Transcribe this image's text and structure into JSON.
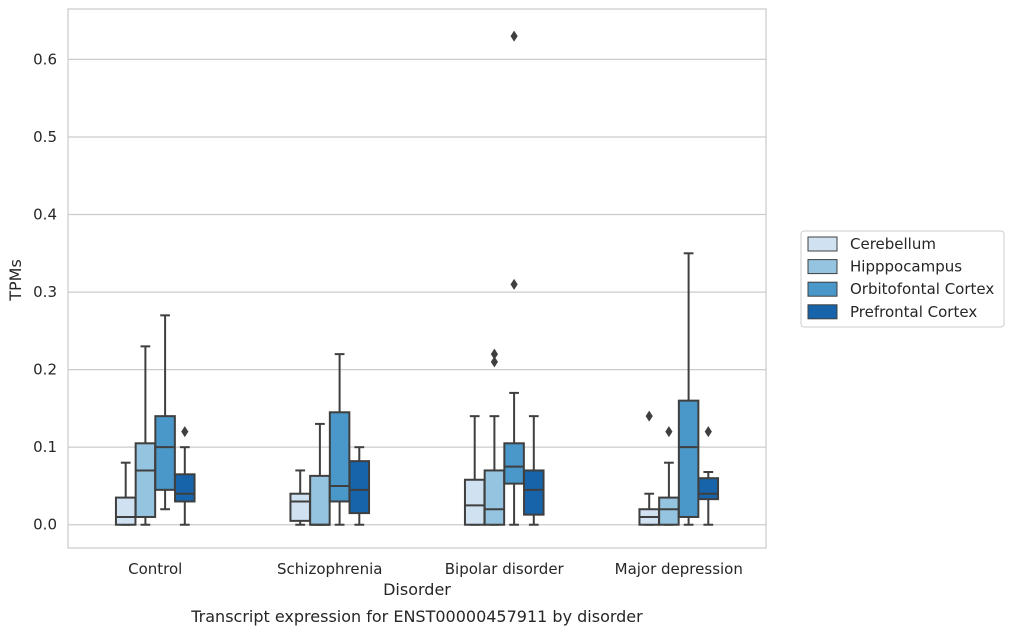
{
  "chart_data": {
    "type": "box",
    "xlabel": "Disorder",
    "ylabel": "TPMs",
    "caption": "Transcript expression for ENST00000457911 by disorder",
    "categories": [
      "Control",
      "Schizophrenia",
      "Bipolar disorder",
      "Major depression"
    ],
    "ylim": [
      -0.03,
      0.665
    ],
    "yticks": [
      0.0,
      0.1,
      0.2,
      0.3,
      0.4,
      0.5,
      0.6
    ],
    "ytick_labels": [
      "0.0",
      "0.1",
      "0.2",
      "0.3",
      "0.4",
      "0.5",
      "0.6"
    ],
    "grid": "horizontal",
    "legend_position": "right",
    "series": [
      {
        "name": "Cerebellum",
        "color": "#d0e1f2",
        "boxes": [
          {
            "whislo": 0.0,
            "q1": 0.0,
            "med": 0.01,
            "q3": 0.035,
            "whishi": 0.08,
            "fliers": []
          },
          {
            "whislo": 0.0,
            "q1": 0.005,
            "med": 0.03,
            "q3": 0.04,
            "whishi": 0.07,
            "fliers": []
          },
          {
            "whislo": 0.0,
            "q1": 0.0,
            "med": 0.025,
            "q3": 0.058,
            "whishi": 0.14,
            "fliers": []
          },
          {
            "whislo": 0.0,
            "q1": 0.0,
            "med": 0.01,
            "q3": 0.02,
            "whishi": 0.04,
            "fliers": [
              0.14
            ]
          }
        ]
      },
      {
        "name": "Hipppocampus",
        "color": "#94c4df",
        "boxes": [
          {
            "whislo": 0.0,
            "q1": 0.01,
            "med": 0.07,
            "q3": 0.105,
            "whishi": 0.23,
            "fliers": []
          },
          {
            "whislo": 0.0,
            "q1": 0.0,
            "med": 0.0,
            "q3": 0.063,
            "whishi": 0.13,
            "fliers": []
          },
          {
            "whislo": 0.0,
            "q1": 0.0,
            "med": 0.02,
            "q3": 0.07,
            "whishi": 0.14,
            "fliers": [
              0.21,
              0.22
            ]
          },
          {
            "whislo": 0.0,
            "q1": 0.0,
            "med": 0.02,
            "q3": 0.035,
            "whishi": 0.08,
            "fliers": [
              0.12
            ]
          }
        ]
      },
      {
        "name": "Orbitofontal Cortex",
        "color": "#4a98c9",
        "boxes": [
          {
            "whislo": 0.02,
            "q1": 0.045,
            "med": 0.1,
            "q3": 0.14,
            "whishi": 0.27,
            "fliers": []
          },
          {
            "whislo": 0.0,
            "q1": 0.03,
            "med": 0.05,
            "q3": 0.145,
            "whishi": 0.22,
            "fliers": []
          },
          {
            "whislo": 0.0,
            "q1": 0.053,
            "med": 0.075,
            "q3": 0.105,
            "whishi": 0.17,
            "fliers": [
              0.31,
              0.63
            ]
          },
          {
            "whislo": 0.0,
            "q1": 0.01,
            "med": 0.1,
            "q3": 0.16,
            "whishi": 0.35,
            "fliers": []
          }
        ]
      },
      {
        "name": "Prefrontal Cortex",
        "color": "#1764ab",
        "boxes": [
          {
            "whislo": 0.0,
            "q1": 0.03,
            "med": 0.04,
            "q3": 0.065,
            "whishi": 0.1,
            "fliers": [
              0.12
            ]
          },
          {
            "whislo": 0.0,
            "q1": 0.015,
            "med": 0.045,
            "q3": 0.082,
            "whishi": 0.1,
            "fliers": []
          },
          {
            "whislo": 0.0,
            "q1": 0.013,
            "med": 0.045,
            "q3": 0.07,
            "whishi": 0.14,
            "fliers": []
          },
          {
            "whislo": 0.0,
            "q1": 0.033,
            "med": 0.04,
            "q3": 0.06,
            "whishi": 0.068,
            "fliers": [
              0.12
            ]
          }
        ]
      }
    ]
  }
}
